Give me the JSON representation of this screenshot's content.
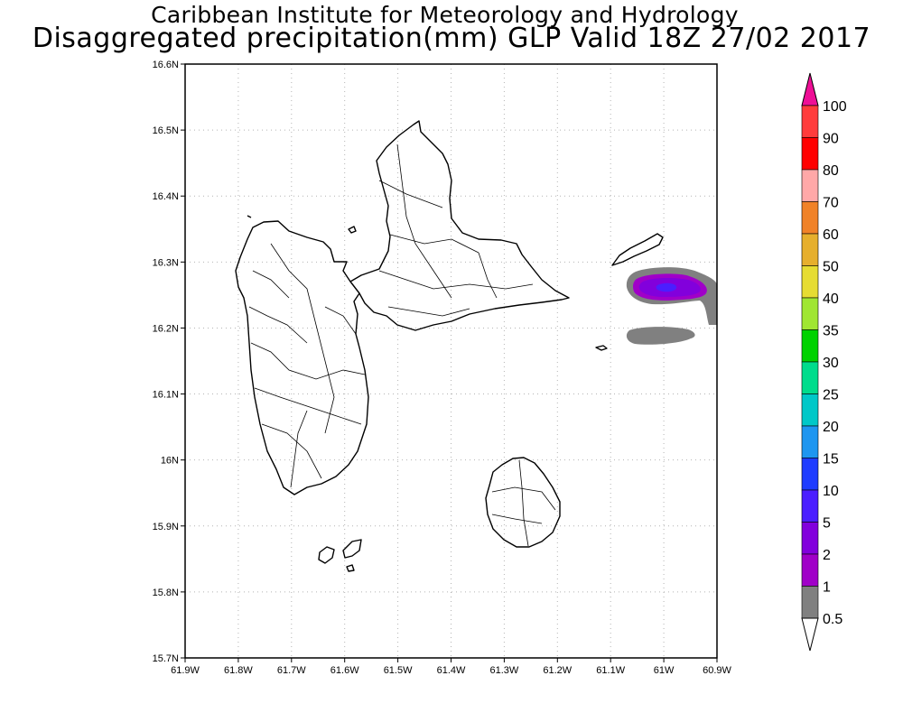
{
  "title_line1": "Caribbean Institute for Meteorology and Hydrology",
  "title_line2": "Disaggregated precipitation(mm) GLP Valid 18Z 27/02 2017",
  "lat_ticks": [
    "16.6N",
    "16.5N",
    "16.4N",
    "16.3N",
    "16.2N",
    "16.1N",
    "16N",
    "15.9N",
    "15.8N",
    "15.7N"
  ],
  "lon_ticks": [
    "61.9W",
    "61.8W",
    "61.7W",
    "61.6W",
    "61.5W",
    "61.4W",
    "61.3W",
    "61.2W",
    "61.1W",
    "61W",
    "60.9W"
  ],
  "colorbar": {
    "labels": [
      "100",
      "90",
      "80",
      "70",
      "60",
      "50",
      "40",
      "35",
      "30",
      "25",
      "20",
      "15",
      "10",
      "5",
      "2",
      "1",
      "0.5"
    ],
    "colors_top_to_bottom": [
      "#ff3c3c",
      "#ff0000",
      "#ffa8a8",
      "#f08228",
      "#e6af2d",
      "#e6dc32",
      "#a0e632",
      "#00d200",
      "#00dc8c",
      "#00c8c8",
      "#1e96f0",
      "#1e3cff",
      "#4b1eff",
      "#8200dc",
      "#a000c8",
      "#808080"
    ],
    "top_arrow_color": "#ee0f96",
    "bottom_arrow_color": "#ffffff"
  }
}
